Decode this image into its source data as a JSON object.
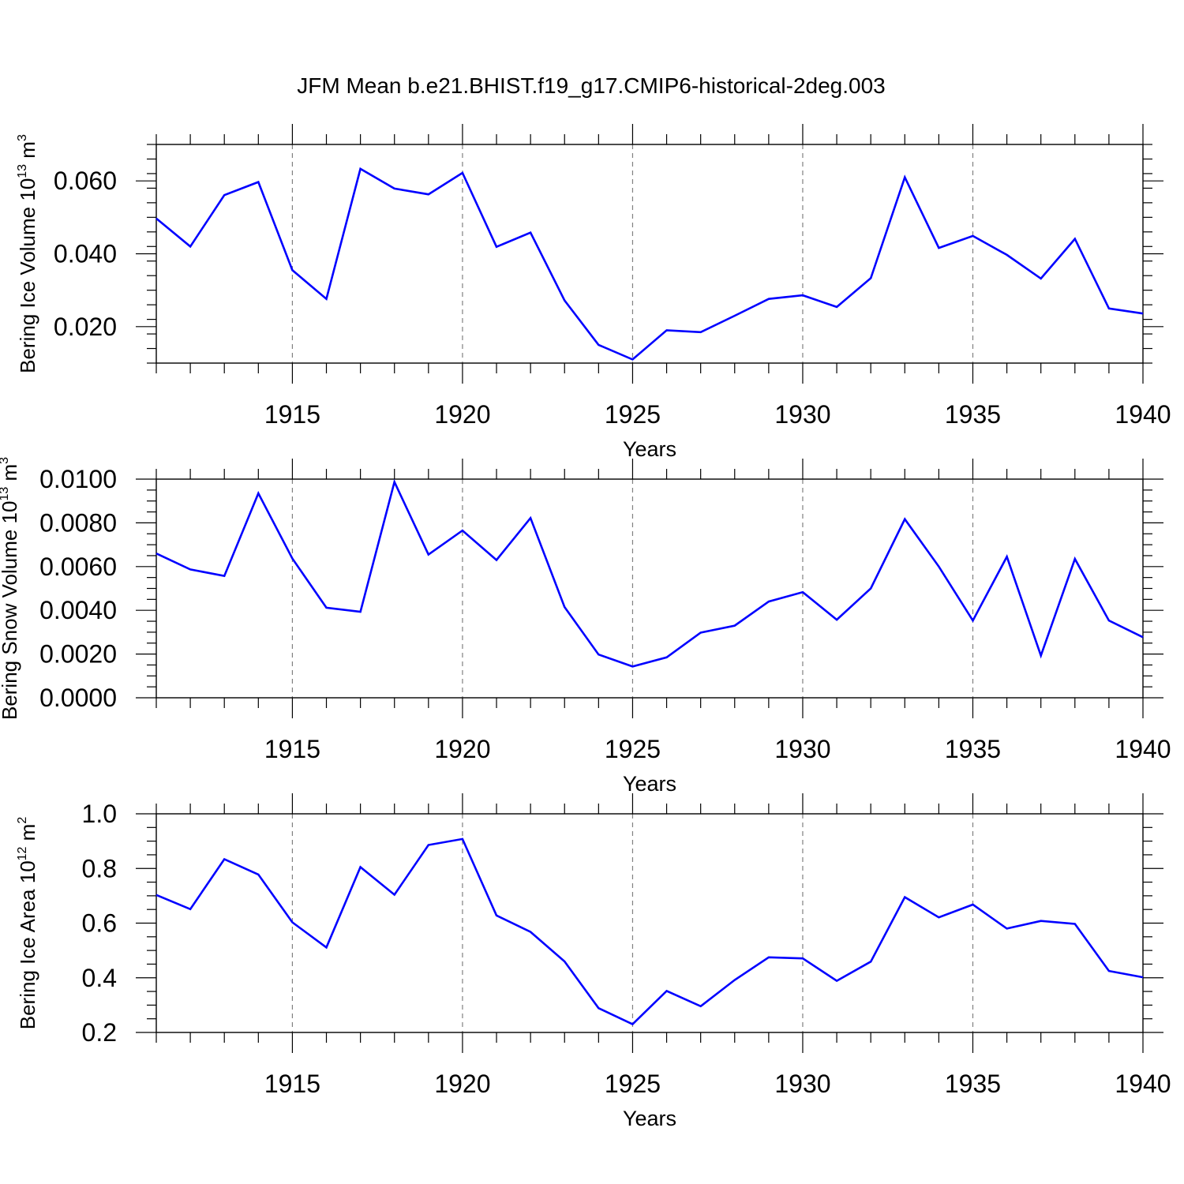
{
  "title": "JFM Mean b.e21.BHIST.f19_g17.CMIP6-historical-2deg.003",
  "colors": {
    "line": "#0000ff",
    "axis": "#000000",
    "grid": "#808080"
  },
  "chart_data": [
    {
      "type": "line",
      "id": "ice-volume",
      "title": "",
      "xlabel": "Years",
      "ylabel_main": "Bering Ice Volume 10",
      "ylabel_exp": "13",
      "ylabel_unit": " m",
      "ylabel_unit_exp": "3",
      "xlim": [
        1911,
        1940
      ],
      "ylim": [
        0.01,
        0.07
      ],
      "yticks": [
        0.02,
        0.04,
        0.06
      ],
      "ytick_labels": [
        "0.020",
        "0.040",
        "0.060"
      ],
      "yminor_step": 0.004,
      "xticks": [
        1915,
        1920,
        1925,
        1930,
        1935,
        1940
      ],
      "xtick_labels": [
        "1915",
        "1920",
        "1925",
        "1930",
        "1935",
        "1940"
      ],
      "vgrid": [
        1915,
        1920,
        1925,
        1930,
        1935
      ],
      "series": [
        {
          "name": "Bering Ice Volume",
          "x": [
            1911,
            1912,
            1913,
            1914,
            1915,
            1916,
            1917,
            1918,
            1919,
            1920,
            1921,
            1922,
            1923,
            1924,
            1925,
            1926,
            1927,
            1928,
            1929,
            1930,
            1931,
            1932,
            1933,
            1934,
            1935,
            1936,
            1937,
            1938,
            1939,
            1940
          ],
          "values": [
            0.0497,
            0.042,
            0.0561,
            0.0597,
            0.0355,
            0.0276,
            0.0633,
            0.0579,
            0.0563,
            0.0622,
            0.0419,
            0.0458,
            0.0272,
            0.015,
            0.011,
            0.019,
            0.0185,
            0.023,
            0.0276,
            0.0286,
            0.0254,
            0.0333,
            0.061,
            0.0416,
            0.0449,
            0.0397,
            0.0332,
            0.0441,
            0.025,
            0.0236
          ]
        }
      ]
    },
    {
      "type": "line",
      "id": "snow-volume",
      "title": "",
      "xlabel": "Years",
      "ylabel_main": "Bering Snow Volume 10",
      "ylabel_exp": "13",
      "ylabel_unit": " m",
      "ylabel_unit_exp": "3",
      "xlim": [
        1911,
        1940
      ],
      "ylim": [
        0.0,
        0.01
      ],
      "yticks": [
        0.0,
        0.002,
        0.004,
        0.006,
        0.008,
        0.01
      ],
      "ytick_labels": [
        "0.0000",
        "0.0020",
        "0.0040",
        "0.0060",
        "0.0080",
        "0.0100"
      ],
      "yminor_step": 0.0005,
      "xticks": [
        1915,
        1920,
        1925,
        1930,
        1935,
        1940
      ],
      "xtick_labels": [
        "1915",
        "1920",
        "1925",
        "1930",
        "1935",
        "1940"
      ],
      "vgrid": [
        1915,
        1920,
        1925,
        1930,
        1935
      ],
      "series": [
        {
          "name": "Bering Snow Volume",
          "x": [
            1911,
            1912,
            1913,
            1914,
            1915,
            1916,
            1917,
            1918,
            1919,
            1920,
            1921,
            1922,
            1923,
            1924,
            1925,
            1926,
            1927,
            1928,
            1929,
            1930,
            1931,
            1932,
            1933,
            1934,
            1935,
            1936,
            1937,
            1938,
            1939,
            1940
          ],
          "values": [
            0.0066,
            0.00587,
            0.00557,
            0.00935,
            0.00637,
            0.00412,
            0.00393,
            0.00987,
            0.00655,
            0.00765,
            0.0063,
            0.00822,
            0.00415,
            0.00198,
            0.00143,
            0.00185,
            0.00298,
            0.0033,
            0.0044,
            0.00483,
            0.00357,
            0.005,
            0.00817,
            0.006,
            0.00353,
            0.00645,
            0.00193,
            0.00635,
            0.00353,
            0.00277
          ]
        }
      ]
    },
    {
      "type": "line",
      "id": "ice-area",
      "title": "",
      "xlabel": "Years",
      "ylabel_main": "Bering Ice Area 10",
      "ylabel_exp": "12",
      "ylabel_unit": " m",
      "ylabel_unit_exp": "2",
      "xlim": [
        1911,
        1940
      ],
      "ylim": [
        0.2,
        1.0
      ],
      "yticks": [
        0.2,
        0.4,
        0.6,
        0.8,
        1.0
      ],
      "ytick_labels": [
        "0.2",
        "0.4",
        "0.6",
        "0.8",
        "1.0"
      ],
      "yminor_step": 0.05,
      "xticks": [
        1915,
        1920,
        1925,
        1930,
        1935,
        1940
      ],
      "xtick_labels": [
        "1915",
        "1920",
        "1925",
        "1930",
        "1935",
        "1940"
      ],
      "vgrid": [
        1915,
        1920,
        1925,
        1930,
        1935
      ],
      "series": [
        {
          "name": "Bering Ice Area",
          "x": [
            1911,
            1912,
            1913,
            1914,
            1915,
            1916,
            1917,
            1918,
            1919,
            1920,
            1921,
            1922,
            1923,
            1924,
            1925,
            1926,
            1927,
            1928,
            1929,
            1930,
            1931,
            1932,
            1933,
            1934,
            1935,
            1936,
            1937,
            1938,
            1939,
            1940
          ],
          "values": [
            0.703,
            0.651,
            0.834,
            0.778,
            0.603,
            0.511,
            0.805,
            0.704,
            0.886,
            0.908,
            0.628,
            0.568,
            0.46,
            0.289,
            0.23,
            0.352,
            0.296,
            0.392,
            0.475,
            0.471,
            0.389,
            0.459,
            0.695,
            0.621,
            0.668,
            0.58,
            0.608,
            0.597,
            0.425,
            0.402
          ]
        }
      ]
    }
  ]
}
